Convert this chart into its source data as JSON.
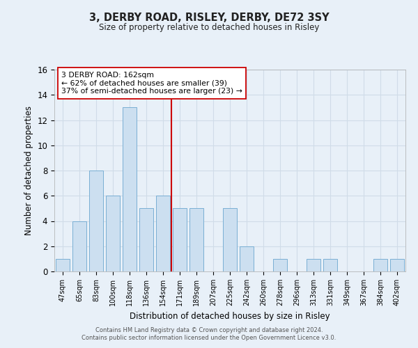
{
  "title": "3, DERBY ROAD, RISLEY, DERBY, DE72 3SY",
  "subtitle": "Size of property relative to detached houses in Risley",
  "xlabel": "Distribution of detached houses by size in Risley",
  "ylabel": "Number of detached properties",
  "bin_labels": [
    "47sqm",
    "65sqm",
    "83sqm",
    "100sqm",
    "118sqm",
    "136sqm",
    "154sqm",
    "171sqm",
    "189sqm",
    "207sqm",
    "225sqm",
    "242sqm",
    "260sqm",
    "278sqm",
    "296sqm",
    "313sqm",
    "331sqm",
    "349sqm",
    "367sqm",
    "384sqm",
    "402sqm"
  ],
  "bar_heights": [
    1,
    4,
    8,
    6,
    13,
    5,
    6,
    5,
    5,
    0,
    5,
    2,
    0,
    1,
    0,
    1,
    1,
    0,
    0,
    1,
    1
  ],
  "bar_color": "#ccdff0",
  "bar_edge_color": "#7aafd4",
  "grid_color": "#d0dce8",
  "background_color": "#e8f0f8",
  "vline_x_index": 6.5,
  "vline_color": "#cc0000",
  "annotation_text": "3 DERBY ROAD: 162sqm\n← 62% of detached houses are smaller (39)\n37% of semi-detached houses are larger (23) →",
  "annotation_box_facecolor": "#ffffff",
  "annotation_box_edgecolor": "#cc0000",
  "ylim": [
    0,
    16
  ],
  "yticks": [
    0,
    2,
    4,
    6,
    8,
    10,
    12,
    14,
    16
  ],
  "footer_line1": "Contains HM Land Registry data © Crown copyright and database right 2024.",
  "footer_line2": "Contains public sector information licensed under the Open Government Licence v3.0."
}
